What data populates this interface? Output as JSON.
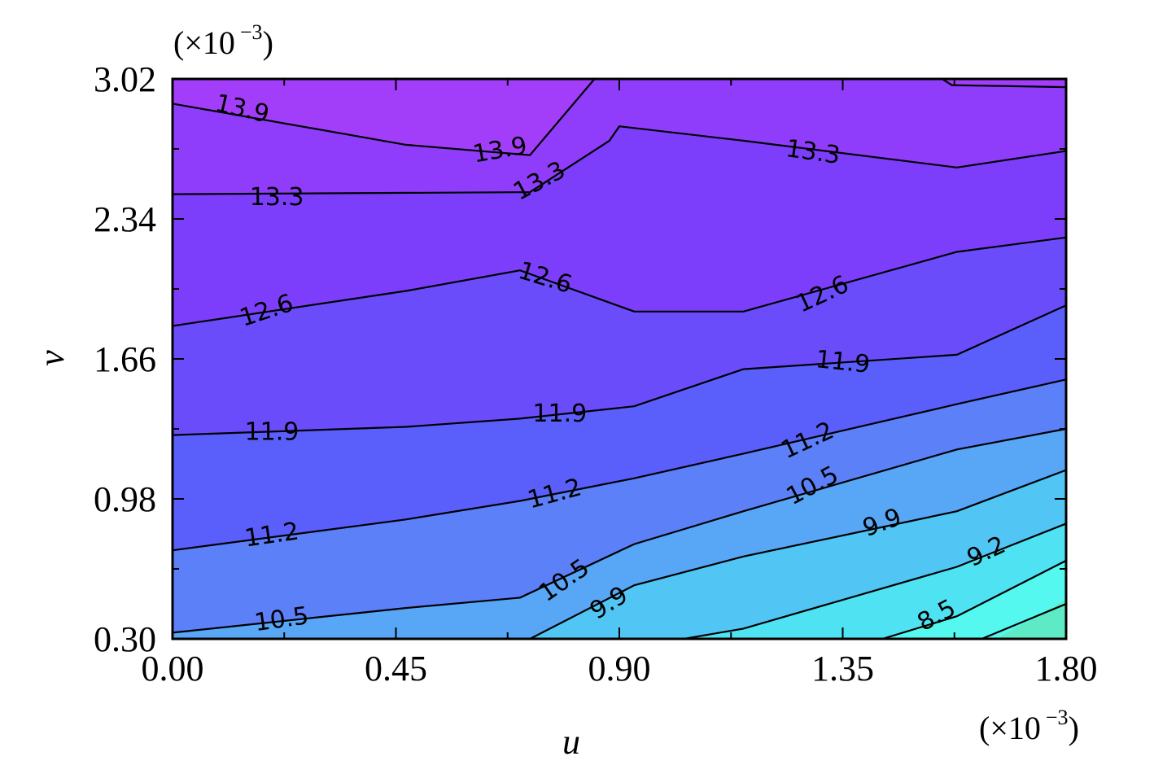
{
  "chart_data": {
    "type": "contour",
    "title": "",
    "xlabel": "u",
    "ylabel": "v",
    "x_multiplier": "(×10",
    "x_multiplier_exp": "−3",
    "y_multiplier": "(×10",
    "y_multiplier_exp": "−3",
    "xlim": [
      0.0,
      1.8
    ],
    "ylim": [
      0.3,
      3.02
    ],
    "x_ticks": [
      "0.00",
      "0.45",
      "0.90",
      "1.35",
      "1.80"
    ],
    "y_ticks": [
      "0.30",
      "0.98",
      "1.66",
      "2.34",
      "3.02"
    ],
    "x_tick_values": [
      0.0,
      0.45,
      0.9,
      1.35,
      1.8
    ],
    "y_tick_values": [
      0.3,
      0.98,
      1.66,
      2.34,
      3.02
    ],
    "levels": [
      8.5,
      9.2,
      9.9,
      10.5,
      11.2,
      11.9,
      12.6,
      13.3,
      13.9
    ],
    "colors": {
      "band_above_13.9": "#a23dfa",
      "band_13.3_13.9": "#8f3dfb",
      "band_12.6_13.3": "#7c3efb",
      "band_11.9_12.6": "#6a4cfb",
      "band_11.2_11.9": "#5a5ffb",
      "band_10.5_11.2": "#5b80f8",
      "band_9.9_10.5": "#58a6f6",
      "band_9.2_9.9": "#51c6f4",
      "band_8.5_9.2": "#4ee2f2",
      "band_below_8.5": "#55f8ef",
      "corner": "#5eeac4"
    },
    "contours": [
      {
        "level": 13.9,
        "label": "13.9",
        "segments": [
          {
            "points": [
              [
                0,
                2.9
              ],
              [
                0.47,
                2.7
              ],
              [
                0.72,
                2.65
              ],
              [
                0.85,
                3.02
              ]
            ]
          },
          {
            "points": [
              [
                1.55,
                3.02
              ],
              [
                1.57,
                2.99
              ],
              [
                1.8,
                2.98
              ]
            ]
          }
        ]
      },
      {
        "level": 13.3,
        "label": "13.3",
        "points": [
          [
            0,
            2.46
          ],
          [
            0.72,
            2.47
          ],
          [
            0.88,
            2.72
          ],
          [
            0.9,
            2.79
          ],
          [
            1.15,
            2.72
          ],
          [
            1.58,
            2.59
          ],
          [
            1.8,
            2.67
          ]
        ]
      },
      {
        "level": 12.6,
        "label": "12.6",
        "points": [
          [
            0,
            1.82
          ],
          [
            0.47,
            1.99
          ],
          [
            0.7,
            2.09
          ],
          [
            0.93,
            1.89
          ],
          [
            1.15,
            1.89
          ],
          [
            1.58,
            2.18
          ],
          [
            1.8,
            2.25
          ]
        ]
      },
      {
        "level": 11.9,
        "label": "11.9",
        "points": [
          [
            0,
            1.29
          ],
          [
            0.47,
            1.33
          ],
          [
            0.7,
            1.37
          ],
          [
            0.93,
            1.43
          ],
          [
            1.15,
            1.61
          ],
          [
            1.58,
            1.68
          ],
          [
            1.8,
            1.92
          ]
        ]
      },
      {
        "level": 11.2,
        "label": "11.2",
        "points": [
          [
            0,
            0.73
          ],
          [
            0.47,
            0.88
          ],
          [
            0.7,
            0.97
          ],
          [
            0.93,
            1.08
          ],
          [
            1.15,
            1.2
          ],
          [
            1.58,
            1.44
          ],
          [
            1.8,
            1.56
          ]
        ]
      },
      {
        "level": 10.5,
        "label": "10.5",
        "points": [
          [
            0,
            0.33
          ],
          [
            0.47,
            0.45
          ],
          [
            0.7,
            0.5
          ],
          [
            0.93,
            0.76
          ],
          [
            1.15,
            0.92
          ],
          [
            1.58,
            1.22
          ],
          [
            1.8,
            1.32
          ]
        ]
      },
      {
        "level": 9.9,
        "label": "9.9",
        "points": [
          [
            0.72,
            0.3
          ],
          [
            0.93,
            0.56
          ],
          [
            1.15,
            0.7
          ],
          [
            1.58,
            0.92
          ],
          [
            1.8,
            1.12
          ]
        ]
      },
      {
        "level": 9.2,
        "label": "9.2",
        "points": [
          [
            1.03,
            0.3
          ],
          [
            1.15,
            0.35
          ],
          [
            1.58,
            0.65
          ],
          [
            1.8,
            0.86
          ]
        ]
      },
      {
        "level": 8.5,
        "label": "8.5",
        "points": [
          [
            1.43,
            0.3
          ],
          [
            1.58,
            0.41
          ],
          [
            1.8,
            0.68
          ]
        ]
      }
    ],
    "contour_labels": [
      {
        "text": "13.9",
        "x": 0.14,
        "y": 2.87,
        "rot": 13
      },
      {
        "text": "13.9",
        "x": 0.66,
        "y": 2.67,
        "rot": -10
      },
      {
        "text": "13.3",
        "x": 0.21,
        "y": 2.44,
        "rot": 0
      },
      {
        "text": "13.3",
        "x": 0.74,
        "y": 2.52,
        "rot": -28
      },
      {
        "text": "13.3",
        "x": 1.29,
        "y": 2.66,
        "rot": 8
      },
      {
        "text": "12.6",
        "x": 0.19,
        "y": 1.89,
        "rot": -18
      },
      {
        "text": "12.6",
        "x": 0.75,
        "y": 2.05,
        "rot": 17
      },
      {
        "text": "12.6",
        "x": 1.31,
        "y": 1.97,
        "rot": -25
      },
      {
        "text": "11.9",
        "x": 0.2,
        "y": 1.3,
        "rot": 0
      },
      {
        "text": "11.9",
        "x": 0.78,
        "y": 1.39,
        "rot": 0
      },
      {
        "text": "11.9",
        "x": 1.35,
        "y": 1.64,
        "rot": 6
      },
      {
        "text": "11.2",
        "x": 0.2,
        "y": 0.8,
        "rot": -8
      },
      {
        "text": "11.2",
        "x": 0.77,
        "y": 1.0,
        "rot": -15
      },
      {
        "text": "11.2",
        "x": 1.28,
        "y": 1.26,
        "rot": -25
      },
      {
        "text": "10.5",
        "x": 0.22,
        "y": 0.39,
        "rot": -8
      },
      {
        "text": "10.5",
        "x": 0.79,
        "y": 0.58,
        "rot": -35
      },
      {
        "text": "10.5",
        "x": 1.29,
        "y": 1.04,
        "rot": -28
      },
      {
        "text": "9.9",
        "x": 0.88,
        "y": 0.47,
        "rot": -32
      },
      {
        "text": "9.9",
        "x": 1.43,
        "y": 0.86,
        "rot": -20
      },
      {
        "text": "9.2",
        "x": 1.64,
        "y": 0.72,
        "rot": -25
      },
      {
        "text": "8.5",
        "x": 1.54,
        "y": 0.41,
        "rot": -28
      }
    ]
  }
}
